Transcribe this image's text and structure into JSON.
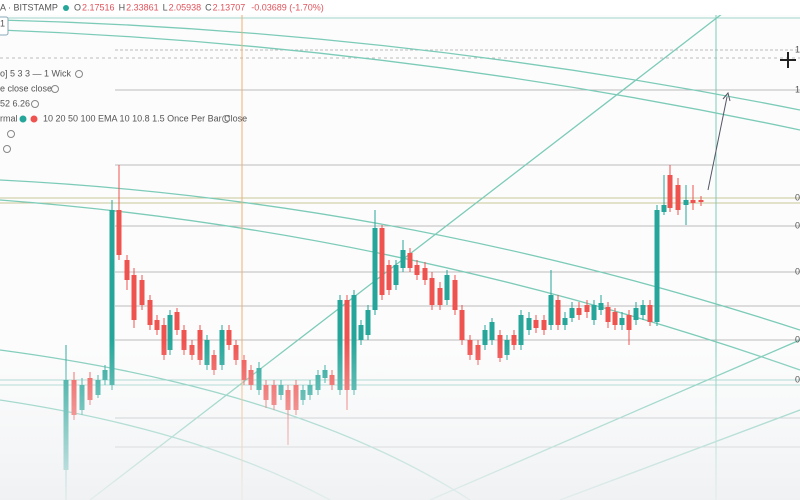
{
  "header": {
    "symbol": "A · BITSTAMP",
    "ohlc": [
      {
        "label": "O",
        "value": "2.17516"
      },
      {
        "label": "H",
        "value": "2.33861"
      },
      {
        "label": "L",
        "value": "2.05938"
      },
      {
        "label": "C",
        "value": "2.13707"
      }
    ],
    "change": "-0.03689 (-1.70%)"
  },
  "badge": "1",
  "indicators": [
    "o] 5 3 3 — 1 Wick",
    "e close close",
    "52 6.26",
    "rmal"
  ],
  "ema_settings": "10 20 50 100 EMA 10 10.8 1.5 Once Per Bar Close",
  "price_axis": [
    "1.",
    "1",
    "0",
    "0",
    "0",
    "0",
    "0"
  ]
}
